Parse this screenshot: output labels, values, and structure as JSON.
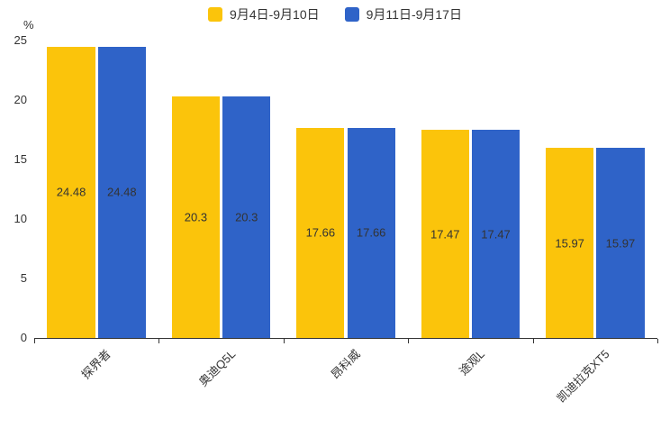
{
  "chart_data": {
    "type": "bar",
    "title": "",
    "unit_label": "%",
    "categories": [
      "探界者",
      "奥迪Q5L",
      "昂科威",
      "途观L",
      "凯迪拉克XT5"
    ],
    "series": [
      {
        "name": "9月4日-9月10日",
        "color": "#FBC40B",
        "values": [
          24.48,
          20.3,
          17.66,
          17.47,
          15.97
        ]
      },
      {
        "name": "9月11日-9月17日",
        "color": "#2F63C8",
        "values": [
          24.48,
          20.3,
          17.66,
          17.47,
          15.97
        ]
      }
    ],
    "ylim": [
      0,
      25
    ],
    "yticks": [
      0,
      5,
      10,
      15,
      20,
      25
    ],
    "grid": false,
    "legend_position": "top",
    "value_label_color": "#333333",
    "axis_color": "#333333"
  }
}
